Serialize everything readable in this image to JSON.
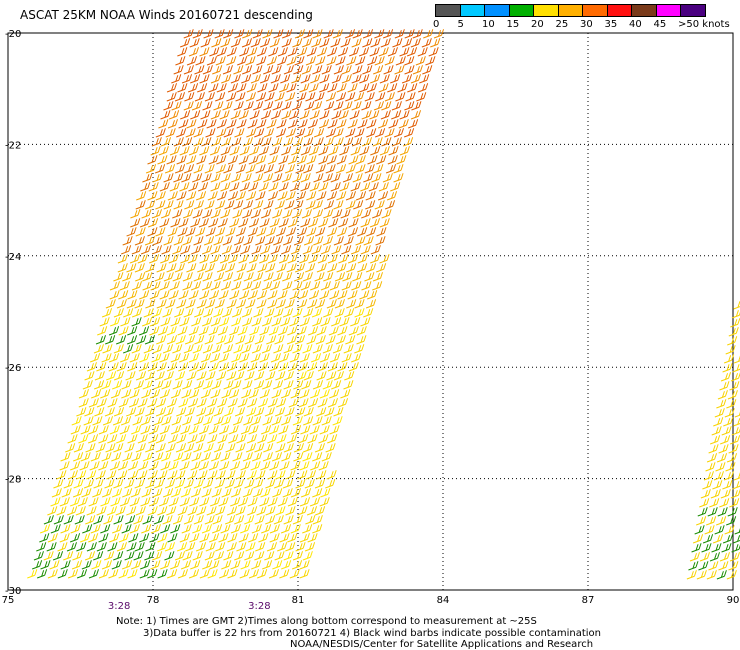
{
  "title": "ASCAT 25KM NOAA Winds 20160721 descending",
  "legend": {
    "labels": [
      "0",
      "5",
      "10",
      "15",
      "20",
      "25",
      "30",
      "35",
      "40",
      "45",
      ">50 knots"
    ],
    "colors": [
      "#555555",
      "#00c8ff",
      "#0090ff",
      "#00b000",
      "#ffe000",
      "#ffb000",
      "#ff6a00",
      "#ff1010",
      "#7a3a1a",
      "#ff00ff",
      "#4a0080"
    ]
  },
  "axes": {
    "lon_ticks": [
      "75",
      "78",
      "81",
      "84",
      "87",
      "90"
    ],
    "lat_ticks": [
      "-20",
      "-22",
      "-24",
      "-26",
      "-28",
      "-30"
    ],
    "lon_range": [
      75,
      90
    ],
    "lat_range": [
      -30,
      -20
    ]
  },
  "time_labels": [
    "3:28",
    "3:28"
  ],
  "notes": [
    "Note: 1) Times are GMT 2)Times along bottom correspond to measurement at ~25S",
    "3)Data buffer is 22 hrs from 20160721 4) Black wind barbs indicate possible contamination",
    "NOAA/NESDIS/Center for Satellite Applications and Research"
  ],
  "colors": {
    "time_label": "#5a0a6a",
    "grid": "#888888"
  }
}
